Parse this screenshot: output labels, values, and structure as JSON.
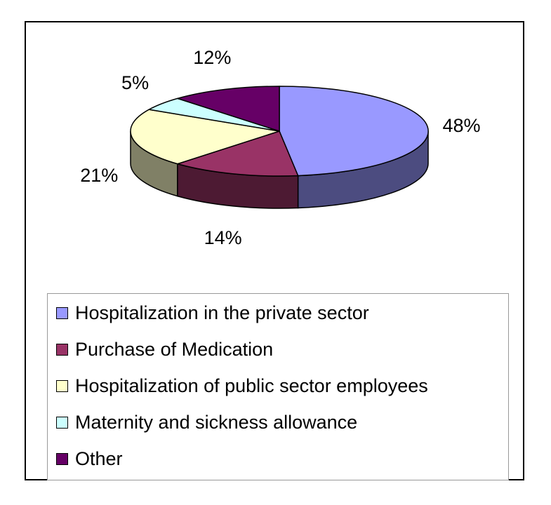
{
  "chart_data": {
    "type": "pie",
    "title": "",
    "slices": [
      {
        "label": "Hospitalization in the private sector",
        "value": 48,
        "value_label": "48%",
        "color": "#9999ff",
        "side_color": "#4c4c80"
      },
      {
        "label": "Purchase of Medication",
        "value": 14,
        "value_label": "14%",
        "color": "#993366",
        "side_color": "#4d1a33"
      },
      {
        "label": "Hospitalization of public sector employees",
        "value": 21,
        "value_label": "21%",
        "color": "#ffffcc",
        "side_color": "#808066"
      },
      {
        "label": "Maternity and sickness allowance",
        "value": 5,
        "value_label": "5%",
        "color": "#ccffff",
        "side_color": "#668080"
      },
      {
        "label": "Other",
        "value": 12,
        "value_label": "12%",
        "color": "#660066",
        "side_color": "#330033"
      }
    ],
    "legend_position": "bottom",
    "style": "3d-pie"
  }
}
